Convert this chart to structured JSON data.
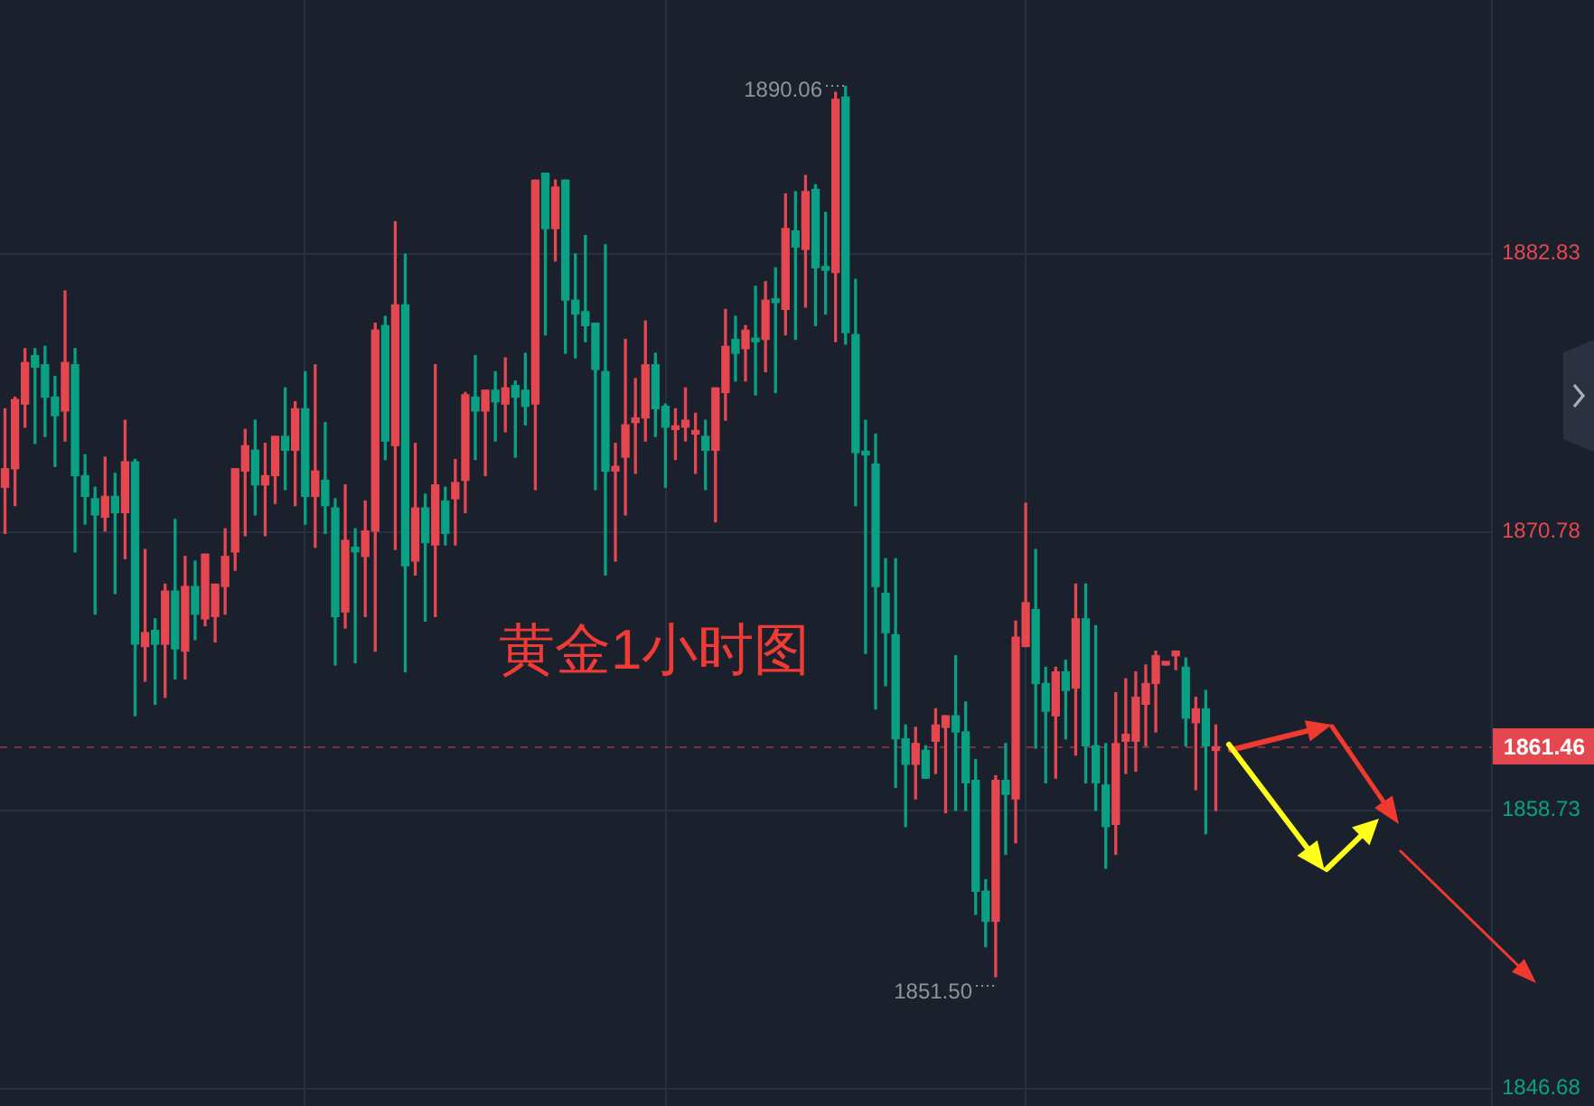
{
  "chart_data": {
    "type": "candlestick",
    "title": "黄金1小时图",
    "categories": [
      null,
      null,
      null,
      null,
      null,
      null,
      null,
      null,
      null,
      null,
      null,
      null,
      null,
      null,
      null,
      null,
      null,
      null,
      null,
      null,
      null,
      null,
      null,
      null,
      null,
      null,
      null,
      null,
      null,
      null,
      null,
      null,
      null,
      null,
      null,
      null,
      null,
      null,
      null,
      null,
      null,
      null,
      null,
      null,
      null,
      null,
      null,
      null,
      null,
      null,
      null,
      null,
      null,
      null,
      null,
      null,
      null,
      null,
      null,
      null,
      null,
      null,
      null,
      null,
      null,
      null,
      null,
      null,
      null,
      null,
      null,
      null,
      null,
      null,
      null,
      null,
      null,
      null,
      null,
      null,
      null,
      null,
      null,
      null,
      null,
      null,
      null,
      null,
      null,
      null,
      null,
      null,
      null,
      null,
      null,
      null,
      null,
      null,
      null,
      null,
      null,
      null,
      null,
      null,
      null,
      null,
      null,
      null,
      null,
      null,
      null,
      null,
      null,
      null,
      null,
      null,
      null,
      null,
      null,
      null,
      null,
      null,
      null,
      null,
      null,
      null,
      null,
      null,
      null,
      null,
      null,
      null,
      null,
      null,
      null,
      null,
      null,
      null,
      null,
      null,
      null,
      null,
      null,
      null,
      null,
      null,
      null,
      null,
      null
    ],
    "ohlc": [
      [
        1872.7,
        1876.1,
        1870.7,
        1873.5
      ],
      [
        1873.5,
        1876.6,
        1871.9,
        1876.5
      ],
      [
        1876.3,
        1878.7,
        1875.3,
        1878.1
      ],
      [
        1878.4,
        1878.7,
        1874.6,
        1877.9
      ],
      [
        1878.0,
        1878.8,
        1874.9,
        1876.6
      ],
      [
        1876.6,
        1877.5,
        1873.6,
        1875.8
      ],
      [
        1876.0,
        1881.2,
        1874.7,
        1878.1
      ],
      [
        1878.0,
        1878.7,
        1869.9,
        1873.2
      ],
      [
        1873.2,
        1874.1,
        1871.1,
        1872.3
      ],
      [
        1872.2,
        1872.7,
        1867.2,
        1871.5
      ],
      [
        1871.4,
        1874.0,
        1870.8,
        1872.3
      ],
      [
        1872.3,
        1873.3,
        1868.1,
        1871.6
      ],
      [
        1871.6,
        1875.6,
        1869.6,
        1873.8
      ],
      [
        1873.8,
        1873.9,
        1862.8,
        1865.9
      ],
      [
        1865.8,
        1870.0,
        1864.3,
        1866.4
      ],
      [
        1866.5,
        1867.0,
        1863.3,
        1865.9
      ],
      [
        1865.9,
        1868.5,
        1863.6,
        1868.2
      ],
      [
        1868.2,
        1871.3,
        1864.4,
        1865.7
      ],
      [
        1865.6,
        1869.7,
        1864.4,
        1868.4
      ],
      [
        1868.4,
        1869.5,
        1866.1,
        1867.2
      ],
      [
        1867.0,
        1869.8,
        1866.7,
        1869.8
      ],
      [
        1867.1,
        1868.5,
        1866.0,
        1868.5
      ],
      [
        1868.4,
        1870.9,
        1867.2,
        1869.7
      ],
      [
        1869.9,
        1873.5,
        1869.1,
        1873.5
      ],
      [
        1873.4,
        1875.2,
        1870.6,
        1874.5
      ],
      [
        1874.3,
        1875.6,
        1871.5,
        1872.8
      ],
      [
        1872.8,
        1874.6,
        1870.6,
        1873.2
      ],
      [
        1873.2,
        1874.9,
        1872.0,
        1874.9
      ],
      [
        1874.9,
        1877.0,
        1872.6,
        1874.3
      ],
      [
        1874.3,
        1876.4,
        1871.9,
        1876.1
      ],
      [
        1876.1,
        1877.7,
        1871.1,
        1872.3
      ],
      [
        1872.3,
        1878.0,
        1870.1,
        1873.4
      ],
      [
        1873.0,
        1875.5,
        1870.7,
        1871.9
      ],
      [
        1871.8,
        1872.2,
        1865.0,
        1867.1
      ],
      [
        1867.3,
        1872.8,
        1866.6,
        1870.4
      ],
      [
        1870.1,
        1870.9,
        1865.1,
        1869.9
      ],
      [
        1869.7,
        1872.1,
        1867.1,
        1870.8
      ],
      [
        1870.8,
        1879.8,
        1865.6,
        1879.5
      ],
      [
        1879.7,
        1880.1,
        1873.9,
        1874.7
      ],
      [
        1874.5,
        1884.2,
        1870.0,
        1880.6
      ],
      [
        1880.6,
        1882.8,
        1864.7,
        1869.3
      ],
      [
        1869.5,
        1874.6,
        1868.9,
        1871.8
      ],
      [
        1871.8,
        1872.4,
        1866.9,
        1870.3
      ],
      [
        1870.2,
        1878.0,
        1867.1,
        1872.8
      ],
      [
        1872.1,
        1872.7,
        1870.2,
        1870.7
      ],
      [
        1872.2,
        1873.9,
        1870.2,
        1872.9
      ],
      [
        1873.0,
        1876.8,
        1871.6,
        1876.7
      ],
      [
        1876.6,
        1878.4,
        1873.9,
        1876.0
      ],
      [
        1876.0,
        1876.9,
        1873.2,
        1876.9
      ],
      [
        1876.9,
        1877.7,
        1874.7,
        1876.4
      ],
      [
        1876.3,
        1878.3,
        1875.1,
        1877.0
      ],
      [
        1877.1,
        1877.3,
        1874.0,
        1876.6
      ],
      [
        1876.9,
        1878.5,
        1875.4,
        1876.2
      ],
      [
        1876.3,
        1886.0,
        1872.6,
        1886.0
      ],
      [
        1886.3,
        1886.3,
        1879.3,
        1883.9
      ],
      [
        1883.9,
        1886.0,
        1882.5,
        1885.7
      ],
      [
        1886.0,
        1886.0,
        1878.5,
        1880.8
      ],
      [
        1880.8,
        1882.8,
        1878.3,
        1880.2
      ],
      [
        1880.3,
        1883.6,
        1879.0,
        1879.7
      ],
      [
        1879.8,
        1879.8,
        1872.6,
        1877.8
      ],
      [
        1877.7,
        1883.2,
        1868.9,
        1873.4
      ],
      [
        1873.4,
        1874.6,
        1869.5,
        1873.6
      ],
      [
        1874.0,
        1879.1,
        1871.5,
        1875.4
      ],
      [
        1875.5,
        1877.4,
        1873.3,
        1875.7
      ],
      [
        1875.7,
        1879.9,
        1874.7,
        1878.0
      ],
      [
        1878.0,
        1878.5,
        1874.9,
        1876.1
      ],
      [
        1876.2,
        1876.3,
        1872.7,
        1875.3
      ],
      [
        1875.2,
        1876.1,
        1873.9,
        1875.3
      ],
      [
        1875.3,
        1877.0,
        1874.7,
        1875.6
      ],
      [
        1875.0,
        1875.9,
        1873.3,
        1875.1
      ],
      [
        1874.9,
        1875.6,
        1872.6,
        1874.3
      ],
      [
        1874.3,
        1877.0,
        1871.2,
        1877.0
      ],
      [
        1876.8,
        1880.4,
        1875.6,
        1878.8
      ],
      [
        1879.1,
        1880.1,
        1877.3,
        1878.5
      ],
      [
        1878.7,
        1879.7,
        1877.3,
        1879.5
      ],
      [
        1879.1,
        1881.4,
        1876.7,
        1879.0
      ],
      [
        1879.1,
        1881.6,
        1877.7,
        1880.8
      ],
      [
        1880.8,
        1882.2,
        1876.8,
        1880.7
      ],
      [
        1880.4,
        1885.4,
        1879.3,
        1883.9
      ],
      [
        1883.8,
        1885.5,
        1879.1,
        1883.1
      ],
      [
        1883.0,
        1886.2,
        1880.5,
        1885.5
      ],
      [
        1885.6,
        1885.8,
        1879.7,
        1882.2
      ],
      [
        1882.2,
        1884.6,
        1880.2,
        1882.1
      ],
      [
        1882.0,
        1889.8,
        1879.0,
        1889.5
      ],
      [
        1889.6,
        1890.06,
        1878.9,
        1879.4
      ],
      [
        1879.3,
        1881.7,
        1871.9,
        1874.2
      ],
      [
        1874.2,
        1875.6,
        1865.5,
        1874.1
      ],
      [
        1873.7,
        1875.0,
        1863.1,
        1868.4
      ],
      [
        1868.1,
        1869.6,
        1864.1,
        1866.4
      ],
      [
        1866.3,
        1869.6,
        1859.7,
        1861.8
      ],
      [
        1861.8,
        1862.4,
        1858.0,
        1860.7
      ],
      [
        1860.7,
        1862.3,
        1859.2,
        1861.6
      ],
      [
        1861.3,
        1861.5,
        1860.1,
        1860.1
      ],
      [
        1861.7,
        1863.1,
        1860.3,
        1862.4
      ],
      [
        1862.3,
        1862.8,
        1858.6,
        1862.8
      ],
      [
        1862.8,
        1865.4,
        1858.7,
        1862.1
      ],
      [
        1862.1,
        1863.4,
        1858.7,
        1859.9
      ],
      [
        1860.0,
        1860.9,
        1854.2,
        1855.2
      ],
      [
        1855.2,
        1855.7,
        1852.8,
        1853.9
      ],
      [
        1853.9,
        1860.2,
        1851.5,
        1860.0
      ],
      [
        1860.0,
        1861.6,
        1856.8,
        1859.4
      ],
      [
        1859.2,
        1866.9,
        1857.3,
        1866.2
      ],
      [
        1865.8,
        1872.0,
        1865.8,
        1867.7
      ],
      [
        1867.4,
        1870.0,
        1861.4,
        1864.2
      ],
      [
        1864.2,
        1864.9,
        1859.9,
        1863.0
      ],
      [
        1862.8,
        1864.9,
        1860.1,
        1864.7
      ],
      [
        1864.7,
        1865.2,
        1861.8,
        1863.9
      ],
      [
        1864.0,
        1868.5,
        1861.1,
        1867.0
      ],
      [
        1867.0,
        1868.5,
        1859.9,
        1861.5
      ],
      [
        1861.5,
        1866.7,
        1858.7,
        1859.9
      ],
      [
        1859.8,
        1861.6,
        1856.2,
        1858.0
      ],
      [
        1858.1,
        1863.8,
        1856.8,
        1861.6
      ],
      [
        1861.7,
        1864.4,
        1860.3,
        1862.0
      ],
      [
        1861.7,
        1864.7,
        1860.4,
        1863.6
      ],
      [
        1863.3,
        1865.0,
        1861.5,
        1864.2
      ],
      [
        1864.2,
        1865.6,
        1862.1,
        1865.4
      ],
      [
        1865.0,
        1865.1,
        1865.0,
        1865.1
      ],
      [
        1865.4,
        1865.6,
        1864.8,
        1865.6
      ],
      [
        1864.9,
        1865.3,
        1861.5,
        1862.7
      ],
      [
        1862.5,
        1863.6,
        1859.6,
        1863.1
      ],
      [
        1863.1,
        1863.9,
        1857.7,
        1861.5
      ],
      [
        1861.3,
        1862.4,
        1858.7,
        1861.46
      ],
      null,
      null,
      null,
      null,
      null,
      null,
      null,
      null,
      null,
      null,
      null,
      null,
      null,
      null,
      null,
      null,
      null,
      null,
      null,
      null,
      null,
      null,
      null,
      null,
      null,
      null,
      null
    ],
    "colors": [
      "#e4474f",
      "#e4474f",
      "#e4474f",
      "#0aa084",
      "#0aa084",
      "#0aa084",
      "#e4474f",
      "#0aa084",
      "#0aa084",
      "#0aa084",
      "#e4474f",
      "#0aa084",
      "#e4474f",
      "#0aa084",
      "#e4474f",
      "#0aa084",
      "#e4474f",
      "#0aa084",
      "#e4474f",
      "#0aa084",
      "#e4474f",
      "#e4474f",
      "#e4474f",
      "#e4474f",
      "#e4474f",
      "#0aa084",
      "#e4474f",
      "#e4474f",
      "#0aa084",
      "#e4474f",
      "#0aa084",
      "#e4474f",
      "#0aa084",
      "#0aa084",
      "#e4474f",
      "#0aa084",
      "#e4474f",
      "#e4474f",
      "#0aa084",
      "#e4474f",
      "#0aa084",
      "#e4474f",
      "#0aa084",
      "#e4474f",
      "#0aa084",
      "#e4474f",
      "#e4474f",
      "#0aa084",
      "#e4474f",
      "#0aa084",
      "#e4474f",
      "#0aa084",
      "#0aa084",
      "#e4474f",
      "#0aa084",
      "#e4474f",
      "#0aa084",
      "#0aa084",
      "#0aa084",
      "#0aa084",
      "#0aa084",
      "#e4474f",
      "#e4474f",
      "#e4474f",
      "#e4474f",
      "#0aa084",
      "#0aa084",
      "#e4474f",
      "#e4474f",
      "#e4474f",
      "#0aa084",
      "#e4474f",
      "#e4474f",
      "#0aa084",
      "#e4474f",
      "#0aa084",
      "#e4474f",
      "#0aa084",
      "#e4474f",
      "#0aa084",
      "#e4474f",
      "#0aa084",
      "#0aa084",
      "#e4474f",
      "#0aa084",
      "#0aa084",
      "#0aa084",
      "#0aa084",
      "#0aa084",
      "#0aa084",
      "#0aa084",
      "#e4474f",
      "#0aa084",
      "#e4474f",
      "#e4474f",
      "#0aa084",
      "#0aa084",
      "#0aa084",
      "#0aa084",
      "#e4474f",
      "#0aa084",
      "#e4474f",
      "#e4474f",
      "#0aa084",
      "#0aa084",
      "#e4474f",
      "#0aa084",
      "#e4474f",
      "#0aa084",
      "#0aa084",
      "#0aa084",
      "#e4474f",
      "#e4474f",
      "#e4474f",
      "#e4474f",
      "#e4474f",
      "#e4474f",
      "#e4474f",
      "#0aa084",
      "#e4474f",
      "#0aa084",
      "#e4474f",
      null,
      null,
      null,
      null,
      null,
      null,
      null,
      null,
      null,
      null,
      null,
      null,
      null,
      null,
      null,
      null,
      null,
      null,
      null,
      null,
      null,
      null,
      null,
      null,
      null,
      null,
      null
    ],
    "ylim": [
      1845.9,
      1893.8
    ],
    "yticks": [
      1882.83,
      1870.78,
      1858.73,
      1846.68
    ],
    "grid": true,
    "tick_labels": "y",
    "ref_lines": [
      {
        "axis": "y",
        "value": 1861.46,
        "label": "1861.46",
        "line_style": "dashed",
        "color": "#e4474f"
      }
    ],
    "annotations": [
      "1890.06",
      "1851.50"
    ]
  }
}
